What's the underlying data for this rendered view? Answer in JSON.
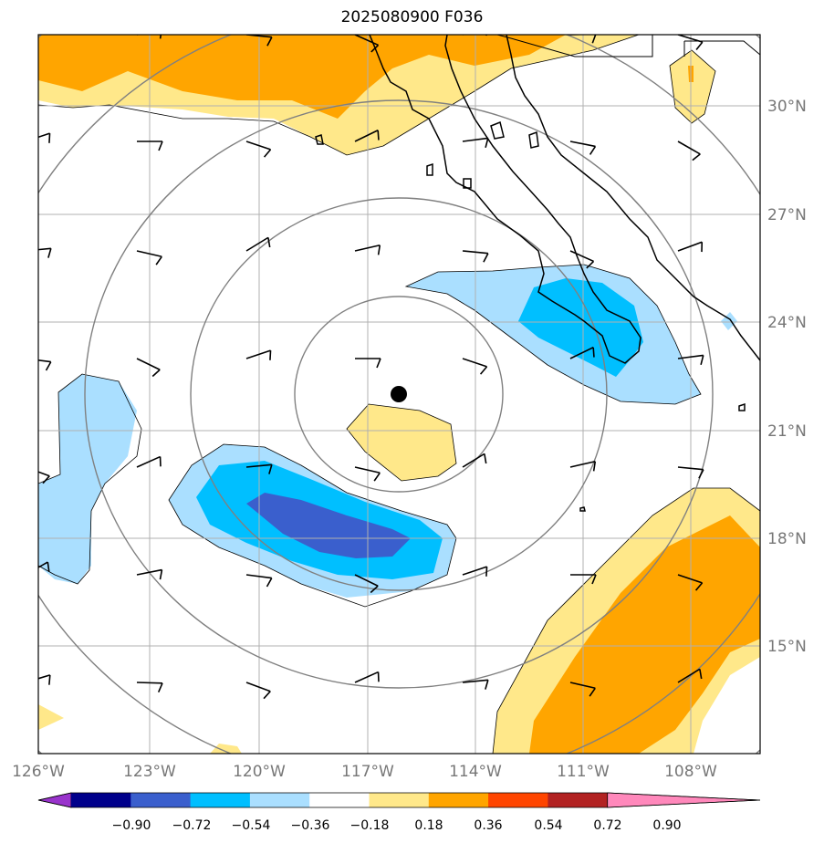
{
  "title": "2025080900 F036",
  "map": {
    "lon_range": [
      -126,
      -106.5
    ],
    "lat_range": [
      12.4,
      32.5
    ],
    "lon_ticks": [
      {
        "value": -126,
        "label": "126°W"
      },
      {
        "value": -123,
        "label": "123°W"
      },
      {
        "value": -120,
        "label": "120°W"
      },
      {
        "value": -117,
        "label": "117°W"
      },
      {
        "value": -114,
        "label": "114°W"
      },
      {
        "value": -111,
        "label": "111°W"
      },
      {
        "value": -108,
        "label": "108°W"
      }
    ],
    "lat_ticks": [
      {
        "value": 30,
        "label": "30°N"
      },
      {
        "value": 27,
        "label": "27°N"
      },
      {
        "value": 24,
        "label": "24°N"
      },
      {
        "value": 21,
        "label": "21°N"
      },
      {
        "value": 18,
        "label": "18°N"
      },
      {
        "value": 15,
        "label": "15°N"
      }
    ],
    "storm_center": {
      "lon": -116.0,
      "lat": 22.0
    },
    "grid": true
  },
  "colorbar": {
    "levels": [
      "−0.90",
      "−0.72",
      "−0.54",
      "−0.36",
      "−0.18",
      "0.18",
      "0.36",
      "0.54",
      "0.72",
      "0.90"
    ],
    "colors": [
      "#9933cc",
      "#00008b",
      "#3a5fcd",
      "#00bfff",
      "#aadfff",
      "#ffffff",
      "#ffe88a",
      "#ffa500",
      "#ff4500",
      "#b22222",
      "#ff88bb"
    ],
    "extend": "both"
  },
  "colors": {
    "range_ring": "#808080",
    "gridline": "#b0b0b0",
    "coastline": "#000000"
  }
}
